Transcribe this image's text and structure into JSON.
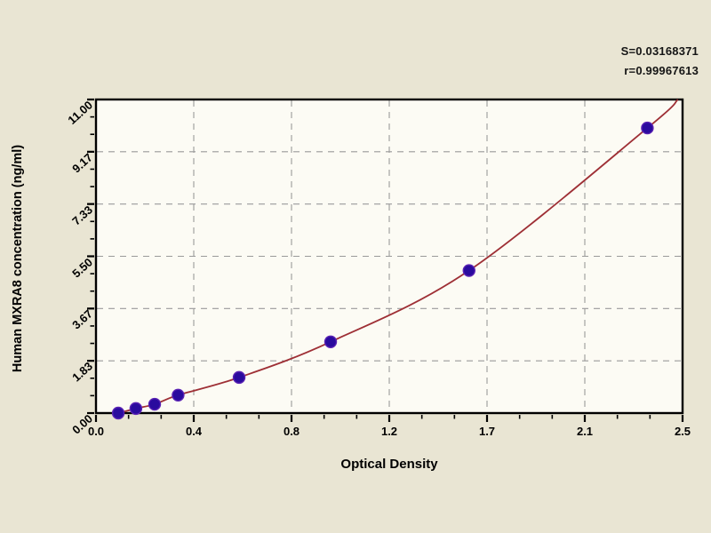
{
  "window": {
    "background": "#e9e5d3"
  },
  "annotations": {
    "s_label": "S=0.03168371",
    "r_label": "r=0.99967613"
  },
  "chart_data": {
    "type": "scatter",
    "title": "",
    "xlabel": "Optical Density",
    "ylabel": "Human MXRA8 concentration (ng/ml)",
    "x_range": [
      0,
      2.5
    ],
    "y_range": [
      0,
      11
    ],
    "x_tick_labels": [
      "0.0",
      "0.4",
      "0.8",
      "1.2",
      "1.7",
      "2.1",
      "2.5"
    ],
    "y_tick_labels": [
      "0.00",
      "1.83",
      "3.67",
      "5.50",
      "7.33",
      "9.17",
      "11.00"
    ],
    "minor_ticks_between_majors": 2,
    "grid": {
      "style": "dashed",
      "color": "#9a9a9a",
      "at": "major-ticks"
    },
    "legend": "none",
    "plot_background": "#fcfbf4",
    "axis_color": "#000000",
    "series": [
      {
        "name": "standard-points",
        "marker": "filled-circle",
        "marker_color": "#2a0b9e",
        "marker_edge_color": "#5a22b4",
        "x": [
          0.095,
          0.17,
          0.25,
          0.35,
          0.61,
          1.0,
          1.59,
          2.35
        ],
        "y": [
          0.0,
          0.16,
          0.31,
          0.63,
          1.25,
          2.5,
          5.0,
          10.0
        ]
      }
    ],
    "fit_curve": {
      "name": "regression-curve",
      "color": "#9e2f35",
      "start": {
        "x": 0.08,
        "y": 0.0
      },
      "end": {
        "x": 2.48,
        "y": 11.0
      },
      "s_value": "0.03168371",
      "r_value": "0.99967613"
    }
  }
}
